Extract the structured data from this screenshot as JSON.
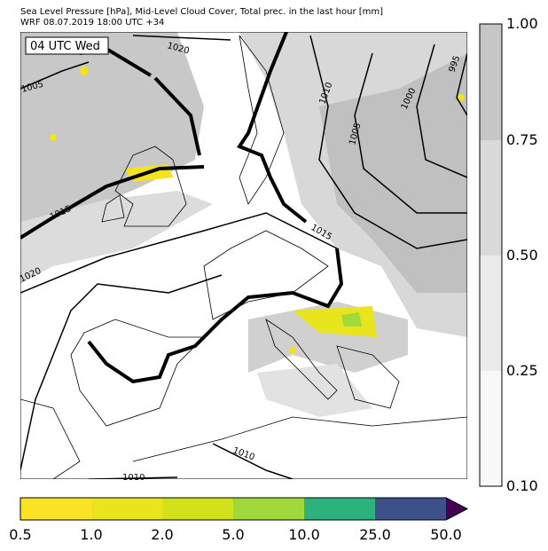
{
  "header": {
    "title": "Sea Level Pressure [hPa], Mid-Level Cloud Cover, Total prec. in the last hour [mm]",
    "subtitle": "WRF 08.07.2019 18:00 UTC +34"
  },
  "map": {
    "time_label": "04 UTC Wed",
    "isobar_labels": [
      "1020",
      "1005",
      "1015",
      "1020",
      "1010",
      "1005",
      "1000",
      "995",
      "1015",
      "1010",
      "1010"
    ]
  },
  "cloud_colorbar": {
    "ticks": [
      "0.10",
      "0.25",
      "0.50",
      "0.75",
      "1.00"
    ]
  },
  "precip_colorbar": {
    "ticks": [
      "0.5",
      "1.0",
      "2.0",
      "5.0",
      "10.0",
      "25.0",
      "50.0"
    ]
  }
}
